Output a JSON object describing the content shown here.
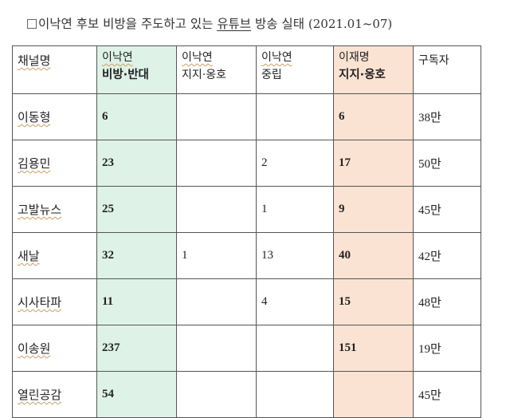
{
  "title": {
    "main": "이낙연 후보 비방을 주도하고 있는 유튜브 방송 실태",
    "underlined": "유튜브",
    "date": "(2021.01~07)"
  },
  "table": {
    "headers": {
      "channel": "채널명",
      "against_line1": "이낙연",
      "against_line2": "비방·반대",
      "support_line1": "이낙연",
      "support_line2": "지지·옹호",
      "neutral_line1": "이낙연",
      "neutral_line2": "중립",
      "lee_line1": "이재명",
      "lee_line2": "지지·옹호",
      "subscribers": "구독자"
    },
    "rows": [
      {
        "channel": "이동형",
        "against": "6",
        "support": "",
        "neutral": "",
        "lee": "6",
        "subs": "38만"
      },
      {
        "channel": "김용민",
        "against": "23",
        "support": "",
        "neutral": "2",
        "lee": "17",
        "subs": "50만"
      },
      {
        "channel": "고발뉴스",
        "against": "25",
        "support": "",
        "neutral": "1",
        "lee": "9",
        "subs": "45만"
      },
      {
        "channel": "새날",
        "against": "32",
        "support": "1",
        "neutral": "13",
        "lee": "40",
        "subs": "42만"
      },
      {
        "channel": "시사타파",
        "against": "11",
        "support": "",
        "neutral": "4",
        "lee": "15",
        "subs": "48만"
      },
      {
        "channel": "이송원",
        "against": "237",
        "support": "",
        "neutral": "",
        "lee": "151",
        "subs": "19만"
      },
      {
        "channel": "열린공감",
        "against": "54",
        "support": "",
        "neutral": "",
        "lee": "",
        "subs": "45만"
      }
    ]
  },
  "colors": {
    "against_column": "#dff2e8",
    "lee_column": "#fbe3d3"
  }
}
